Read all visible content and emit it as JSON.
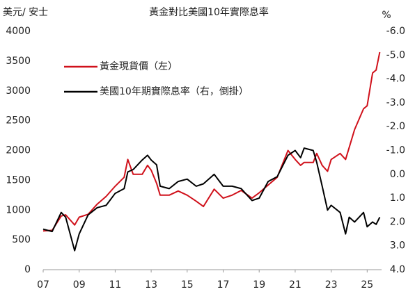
{
  "chart_data": {
    "type": "line",
    "title": "黃金對比美國10年實際息率",
    "ylabel": "美元/ 安士",
    "y2label": "%",
    "x": [
      2007.0,
      2007.5,
      2008.0,
      2008.25,
      2008.75,
      2009.0,
      2009.5,
      2010.0,
      2010.5,
      2011.0,
      2011.5,
      2011.7,
      2012.0,
      2012.5,
      2012.8,
      2013.0,
      2013.3,
      2013.5,
      2014.0,
      2014.5,
      2015.0,
      2015.5,
      2015.9,
      2016.5,
      2017.0,
      2017.5,
      2018.0,
      2018.6,
      2019.0,
      2019.5,
      2020.0,
      2020.6,
      2021.0,
      2021.3,
      2021.5,
      2022.0,
      2022.2,
      2022.5,
      2022.8,
      2023.0,
      2023.5,
      2023.8,
      2024.0,
      2024.3,
      2024.8,
      2025.0,
      2025.3,
      2025.5,
      2025.7
    ],
    "xlim": [
      2007,
      2025.8
    ],
    "xticks": [
      {
        "value": 2007,
        "label": "07"
      },
      {
        "value": 2009,
        "label": "09"
      },
      {
        "value": 2011,
        "label": "11"
      },
      {
        "value": 2013,
        "label": "13"
      },
      {
        "value": 2015,
        "label": "15"
      },
      {
        "value": 2017,
        "label": "17"
      },
      {
        "value": 2019,
        "label": "19"
      },
      {
        "value": 2021,
        "label": "21"
      },
      {
        "value": 2023,
        "label": "23"
      },
      {
        "value": 2025,
        "label": "25"
      }
    ],
    "ylim": [
      0,
      4000
    ],
    "yticks": [
      0,
      500,
      1000,
      1500,
      2000,
      2500,
      3000,
      3500,
      4000
    ],
    "y2lim": [
      4,
      -6
    ],
    "y2ticks": [
      {
        "value": -6,
        "label": "-6.0"
      },
      {
        "value": -5,
        "label": "-5.0"
      },
      {
        "value": -4,
        "label": "-4.0"
      },
      {
        "value": -3,
        "label": "-3.0"
      },
      {
        "value": -2,
        "label": "-2.0"
      },
      {
        "value": -1,
        "label": "-1.0"
      },
      {
        "value": 0,
        "label": "0.0"
      },
      {
        "value": 1,
        "label": "1.0"
      },
      {
        "value": 2,
        "label": "2.0"
      },
      {
        "value": 3,
        "label": "3.0"
      },
      {
        "value": 4,
        "label": "4.0"
      }
    ],
    "legend": "upper left",
    "series": [
      {
        "name": "黃金現貨價（左）",
        "color": "#d0111b",
        "values": [
          650,
          660,
          900,
          920,
          750,
          880,
          930,
          1100,
          1230,
          1400,
          1550,
          1850,
          1600,
          1600,
          1750,
          1670,
          1450,
          1250,
          1250,
          1320,
          1250,
          1150,
          1060,
          1350,
          1200,
          1250,
          1330,
          1200,
          1290,
          1420,
          1550,
          2000,
          1850,
          1750,
          1800,
          1800,
          1950,
          1750,
          1650,
          1850,
          1950,
          1850,
          2050,
          2350,
          2700,
          2750,
          3300,
          3350,
          3650
        ]
      },
      {
        "name": "美國10年期實際息率（右，倒掛）",
        "color": "#000000",
        "axis": "y2",
        "values": [
          2.3,
          2.4,
          1.6,
          1.8,
          3.2,
          2.5,
          1.7,
          1.4,
          1.3,
          0.8,
          0.6,
          -0.1,
          -0.2,
          -0.6,
          -0.8,
          -0.6,
          -0.4,
          0.5,
          0.6,
          0.3,
          0.2,
          0.5,
          0.4,
          0.0,
          0.5,
          0.5,
          0.6,
          1.1,
          1.0,
          0.3,
          0.1,
          -0.8,
          -1.0,
          -0.7,
          -1.1,
          -1.0,
          -0.5,
          0.5,
          1.5,
          1.3,
          1.6,
          2.5,
          1.8,
          2.0,
          1.6,
          2.2,
          2.0,
          2.1,
          1.8
        ]
      }
    ]
  }
}
